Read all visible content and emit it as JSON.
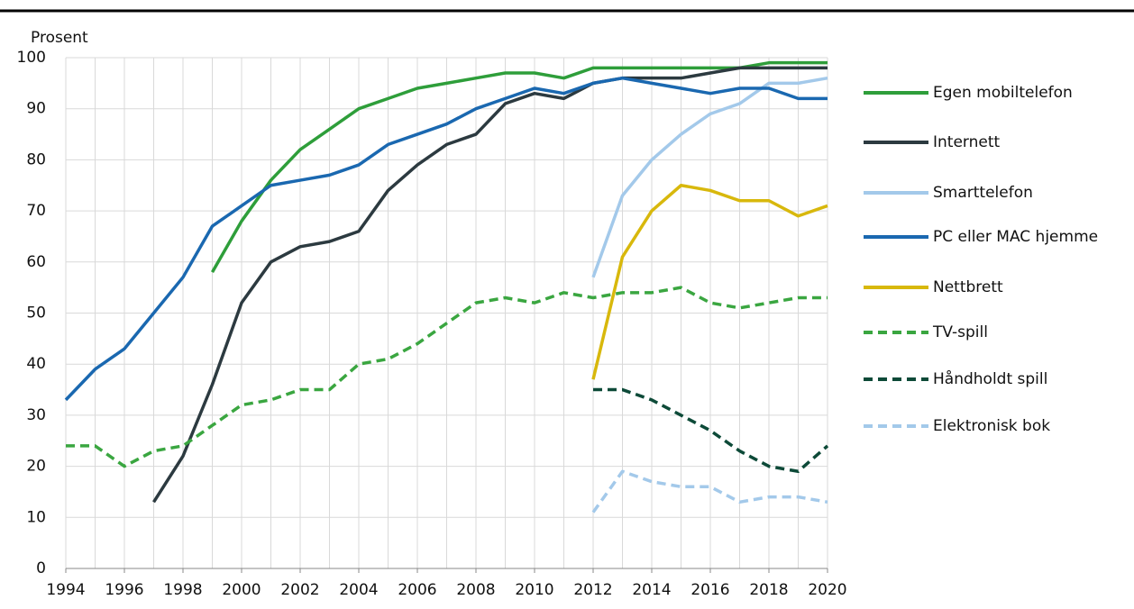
{
  "chart_data": {
    "type": "line",
    "ylabel": "Prosent",
    "x": [
      1994,
      1995,
      1996,
      1997,
      1998,
      1999,
      2000,
      2001,
      2002,
      2003,
      2004,
      2005,
      2006,
      2007,
      2008,
      2009,
      2010,
      2011,
      2012,
      2013,
      2014,
      2015,
      2016,
      2017,
      2018,
      2019,
      2020
    ],
    "xlim": [
      1994,
      2020
    ],
    "xticks": [
      1994,
      1996,
      1998,
      2000,
      2002,
      2004,
      2006,
      2008,
      2010,
      2012,
      2014,
      2016,
      2018,
      2020
    ],
    "ylim": [
      0,
      100
    ],
    "yticks": [
      0,
      10,
      20,
      30,
      40,
      50,
      60,
      70,
      80,
      90,
      100
    ],
    "grid": true,
    "legend": "right",
    "series": [
      {
        "name": "Egen mobiltelefon",
        "color": "#2e9e3a",
        "dashed": false,
        "values": [
          null,
          null,
          null,
          null,
          null,
          58,
          68,
          76,
          82,
          86,
          90,
          92,
          94,
          95,
          96,
          97,
          97,
          96,
          98,
          98,
          98,
          98,
          98,
          98,
          99,
          99,
          99
        ]
      },
      {
        "name": "Internett",
        "color": "#2c3a40",
        "dashed": false,
        "values": [
          null,
          null,
          null,
          13,
          22,
          36,
          52,
          60,
          63,
          64,
          66,
          74,
          79,
          83,
          85,
          91,
          93,
          92,
          95,
          96,
          96,
          96,
          97,
          98,
          98,
          98,
          98
        ]
      },
      {
        "name": "Smarttelefon",
        "color": "#a3c9ea",
        "dashed": false,
        "values": [
          null,
          null,
          null,
          null,
          null,
          null,
          null,
          null,
          null,
          null,
          null,
          null,
          null,
          null,
          null,
          null,
          null,
          null,
          57,
          73,
          80,
          85,
          89,
          91,
          95,
          95,
          96
        ]
      },
      {
        "name": "PC eller MAC hjemme",
        "color": "#1a68b0",
        "dashed": false,
        "values": [
          33,
          39,
          43,
          50,
          57,
          67,
          71,
          75,
          76,
          77,
          79,
          83,
          85,
          87,
          90,
          92,
          94,
          93,
          95,
          96,
          95,
          94,
          93,
          94,
          94,
          92,
          92
        ]
      },
      {
        "name": "Nettbrett",
        "color": "#d8b80c",
        "dashed": false,
        "values": [
          null,
          null,
          null,
          null,
          null,
          null,
          null,
          null,
          null,
          null,
          null,
          null,
          null,
          null,
          null,
          null,
          null,
          null,
          37,
          61,
          70,
          75,
          74,
          72,
          72,
          69,
          71
        ]
      },
      {
        "name": "TV-spill",
        "color": "#3aa640",
        "dashed": true,
        "values": [
          24,
          24,
          20,
          23,
          24,
          28,
          32,
          33,
          35,
          35,
          40,
          41,
          44,
          48,
          52,
          53,
          52,
          54,
          53,
          54,
          54,
          55,
          52,
          51,
          52,
          53,
          53
        ]
      },
      {
        "name": "Håndholdt spill",
        "color": "#0d4a38",
        "dashed": true,
        "values": [
          null,
          null,
          null,
          null,
          null,
          null,
          null,
          null,
          null,
          null,
          null,
          null,
          null,
          null,
          null,
          null,
          null,
          null,
          35,
          35,
          33,
          30,
          27,
          23,
          20,
          19,
          24
        ]
      },
      {
        "name": "Elektronisk bok",
        "color": "#a3c9ea",
        "dashed": true,
        "values": [
          null,
          null,
          null,
          null,
          null,
          null,
          null,
          null,
          null,
          null,
          null,
          null,
          null,
          null,
          null,
          null,
          null,
          null,
          11,
          19,
          17,
          16,
          16,
          13,
          14,
          14,
          13
        ]
      }
    ]
  }
}
